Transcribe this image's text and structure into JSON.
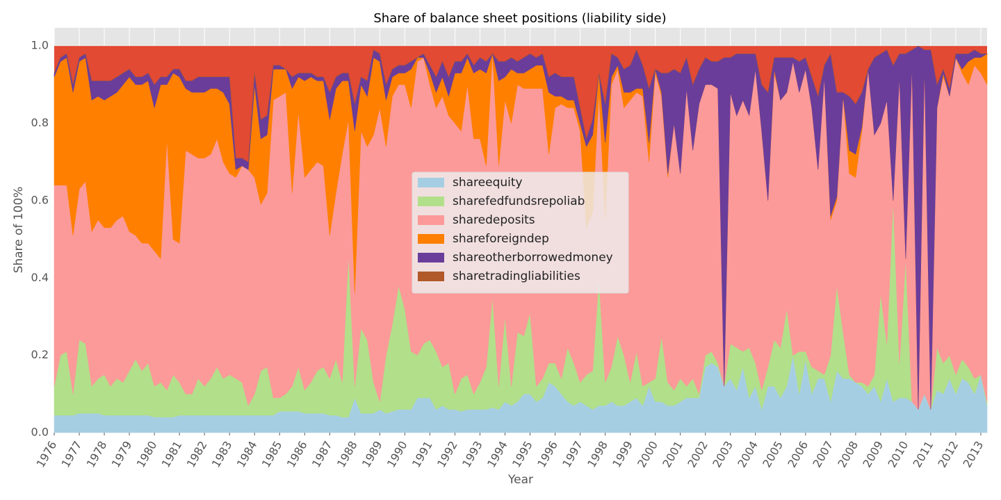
{
  "chart_data": {
    "type": "stackedarea",
    "title": "Share of balance sheet positions (liability side)",
    "xlabel": "Year",
    "ylabel": "Share of 100%",
    "x": [
      1976,
      1976.25,
      1976.5,
      1976.75,
      1977,
      1977.25,
      1977.5,
      1977.75,
      1978,
      1978.25,
      1978.5,
      1978.75,
      1979,
      1979.25,
      1979.5,
      1979.75,
      1980,
      1980.25,
      1980.5,
      1980.75,
      1981,
      1981.25,
      1981.5,
      1981.75,
      1982,
      1982.25,
      1982.5,
      1982.75,
      1983,
      1983.25,
      1983.5,
      1983.75,
      1984,
      1984.25,
      1984.5,
      1984.75,
      1985,
      1985.25,
      1985.5,
      1985.75,
      1986,
      1986.25,
      1986.5,
      1986.75,
      1987,
      1987.25,
      1987.5,
      1987.75,
      1988,
      1988.25,
      1988.5,
      1988.75,
      1989,
      1989.25,
      1989.5,
      1989.75,
      1990,
      1990.25,
      1990.5,
      1990.75,
      1991,
      1991.25,
      1991.5,
      1991.75,
      1992,
      1992.25,
      1992.5,
      1992.75,
      1993,
      1993.25,
      1993.5,
      1993.75,
      1994,
      1994.25,
      1994.5,
      1994.75,
      1995,
      1995.25,
      1995.5,
      1995.75,
      1996,
      1996.25,
      1996.5,
      1996.75,
      1997,
      1997.25,
      1997.5,
      1997.75,
      1998,
      1998.25,
      1998.5,
      1998.75,
      1999,
      1999.25,
      1999.5,
      1999.75,
      2000,
      2000.25,
      2000.5,
      2000.75,
      2001,
      2001.25,
      2001.5,
      2001.75,
      2002,
      2002.25,
      2002.5,
      2002.75,
      2003,
      2003.25,
      2003.5,
      2003.75,
      2004,
      2004.25,
      2004.5,
      2004.75,
      2005,
      2005.25,
      2005.5,
      2005.75,
      2006,
      2006.25,
      2006.5,
      2006.75,
      2007,
      2007.25,
      2007.5,
      2007.75,
      2008,
      2008.25,
      2008.5,
      2008.75,
      2009,
      2009.25,
      2009.5,
      2009.75,
      2010,
      2010.25,
      2010.5,
      2010.75,
      2011,
      2011.25,
      2011.5,
      2011.75,
      2012,
      2012.25,
      2012.5,
      2012.75,
      2013,
      2013.25
    ],
    "series": [
      {
        "name": "shareequity",
        "color": "#a6cee3",
        "values": [
          0.045,
          0.045,
          0.045,
          0.045,
          0.05,
          0.05,
          0.05,
          0.05,
          0.045,
          0.045,
          0.045,
          0.045,
          0.045,
          0.045,
          0.045,
          0.045,
          0.04,
          0.04,
          0.04,
          0.04,
          0.045,
          0.045,
          0.045,
          0.045,
          0.045,
          0.045,
          0.045,
          0.045,
          0.045,
          0.045,
          0.045,
          0.045,
          0.045,
          0.045,
          0.045,
          0.045,
          0.055,
          0.055,
          0.055,
          0.055,
          0.05,
          0.05,
          0.05,
          0.05,
          0.045,
          0.045,
          0.04,
          0.04,
          0.09,
          0.05,
          0.05,
          0.05,
          0.06,
          0.05,
          0.055,
          0.06,
          0.06,
          0.06,
          0.09,
          0.09,
          0.09,
          0.06,
          0.07,
          0.06,
          0.06,
          0.055,
          0.06,
          0.06,
          0.06,
          0.06,
          0.065,
          0.06,
          0.08,
          0.07,
          0.08,
          0.1,
          0.1,
          0.08,
          0.09,
          0.13,
          0.12,
          0.1,
          0.08,
          0.07,
          0.08,
          0.07,
          0.06,
          0.07,
          0.07,
          0.08,
          0.07,
          0.07,
          0.08,
          0.09,
          0.07,
          0.12,
          0.08,
          0.08,
          0.07,
          0.07,
          0.08,
          0.09,
          0.09,
          0.09,
          0.17,
          0.18,
          0.17,
          0.12,
          0.14,
          0.11,
          0.17,
          0.09,
          0.12,
          0.06,
          0.12,
          0.12,
          0.09,
          0.12,
          0.2,
          0.1,
          0.19,
          0.1,
          0.14,
          0.14,
          0.08,
          0.16,
          0.14,
          0.14,
          0.13,
          0.12,
          0.1,
          0.12,
          0.08,
          0.14,
          0.08,
          0.09,
          0.09,
          0.08,
          0.06,
          0.1,
          0.06,
          0.11,
          0.1,
          0.14,
          0.1,
          0.14,
          0.13,
          0.1,
          0.15,
          0.07
        ]
      },
      {
        "name": "sharefedfundsrepoliab",
        "color": "#b2df8a",
        "values": [
          0.075,
          0.155,
          0.165,
          0.055,
          0.19,
          0.18,
          0.07,
          0.09,
          0.105,
          0.075,
          0.095,
          0.085,
          0.115,
          0.145,
          0.115,
          0.135,
          0.08,
          0.09,
          0.07,
          0.11,
          0.085,
          0.055,
          0.055,
          0.095,
          0.075,
          0.095,
          0.125,
          0.095,
          0.105,
          0.095,
          0.085,
          0.025,
          0.055,
          0.115,
          0.125,
          0.045,
          0.035,
          0.045,
          0.065,
          0.115,
          0.06,
          0.08,
          0.11,
          0.12,
          0.095,
          0.145,
          0.09,
          0.42,
          0.03,
          0.22,
          0.19,
          0.08,
          0.02,
          0.15,
          0.225,
          0.32,
          0.26,
          0.15,
          0.11,
          0.14,
          0.15,
          0.15,
          0.1,
          0.12,
          0.04,
          0.085,
          0.09,
          0.04,
          0.07,
          0.11,
          0.285,
          0.06,
          0.22,
          0.05,
          0.18,
          0.15,
          0.21,
          0.04,
          0.05,
          0.05,
          0.06,
          0.04,
          0.14,
          0.11,
          0.05,
          0.08,
          0.1,
          0.33,
          0.06,
          0.09,
          0.18,
          0.13,
          0.05,
          0.12,
          0.05,
          0.01,
          0.06,
          0.17,
          0.06,
          0.04,
          0.06,
          0.03,
          0.05,
          0.01,
          0.03,
          0.03,
          0.01,
          0,
          0.09,
          0.11,
          0.04,
          0.13,
          0.06,
          0.05,
          0.05,
          0.12,
          0.13,
          0.2,
          0,
          0.11,
          0.02,
          0.07,
          0.02,
          0.01,
          0.12,
          0.22,
          0.12,
          0.01,
          0,
          0.01,
          0.02,
          0.03,
          0.28,
          0.09,
          0.52,
          0.09,
          0.36,
          0,
          0,
          0,
          0,
          0.11,
          0.08,
          0.06,
          0.05,
          0.05,
          0.04,
          0.04,
          0,
          0.01
        ]
      },
      {
        "name": "sharedeposits",
        "color": "#fb9a99",
        "values": [
          0.52,
          0.44,
          0.43,
          0.41,
          0.39,
          0.42,
          0.4,
          0.41,
          0.38,
          0.41,
          0.41,
          0.43,
          0.36,
          0.32,
          0.33,
          0.31,
          0.35,
          0.32,
          0.65,
          0.35,
          0.36,
          0.63,
          0.62,
          0.57,
          0.59,
          0.58,
          0.59,
          0.56,
          0.52,
          0.52,
          0.56,
          0.61,
          0.56,
          0.43,
          0.45,
          0.77,
          0.78,
          0.78,
          0.5,
          0.66,
          0.55,
          0.55,
          0.54,
          0.52,
          0.37,
          0.43,
          0.59,
          0.35,
          0.24,
          0.51,
          0.5,
          0.64,
          0.76,
          0.54,
          0.59,
          0.52,
          0.58,
          0.63,
          0.76,
          0.74,
          0.66,
          0.63,
          0.7,
          0.64,
          0.7,
          0.64,
          0.75,
          0.66,
          0.63,
          0.52,
          0.63,
          0.57,
          0.56,
          0.68,
          0.64,
          0.64,
          0.58,
          0.77,
          0.75,
          0.54,
          0.66,
          0.71,
          0.62,
          0.66,
          0.65,
          0.38,
          0.41,
          0.48,
          0.42,
          0.73,
          0.69,
          0.64,
          0.73,
          0.67,
          0.75,
          0.57,
          0.79,
          0.62,
          0.53,
          0.69,
          0.53,
          0.77,
          0.59,
          0.75,
          0.7,
          0.69,
          0.71,
          0,
          0.65,
          0.6,
          0.65,
          0.6,
          0.76,
          0.67,
          0.43,
          0.69,
          0.64,
          0.56,
          0.76,
          0.67,
          0.73,
          0.67,
          0.52,
          0.77,
          0.35,
          0.22,
          0.61,
          0.52,
          0.53,
          0.65,
          0.82,
          0.62,
          0.44,
          0.63,
          0,
          0.74,
          0,
          0.87,
          0,
          0.85,
          0,
          0.62,
          0.74,
          0.67,
          0.82,
          0.74,
          0.73,
          0.81,
          0.78,
          0.82
        ]
      },
      {
        "name": "shareforeigndep",
        "color": "#ff7f00",
        "values": [
          0.28,
          0.32,
          0.33,
          0.37,
          0.33,
          0.32,
          0.34,
          0.32,
          0.33,
          0.34,
          0.33,
          0.34,
          0.4,
          0.39,
          0.41,
          0.42,
          0.37,
          0.45,
          0.14,
          0.43,
          0.43,
          0.16,
          0.16,
          0.17,
          0.17,
          0.17,
          0.13,
          0.18,
          0.18,
          0.02,
          0,
          0,
          0.24,
          0.17,
          0.15,
          0.08,
          0.07,
          0.06,
          0.27,
          0.09,
          0.25,
          0.24,
          0.21,
          0.22,
          0.3,
          0.27,
          0.19,
          0.1,
          0.42,
          0.12,
          0.13,
          0.2,
          0.12,
          0.12,
          0.05,
          0.03,
          0.03,
          0.1,
          0.01,
          0,
          0.03,
          0.04,
          0.05,
          0.05,
          0.13,
          0.15,
          0.07,
          0.17,
          0.18,
          0.24,
          0,
          0.22,
          0.06,
          0.14,
          0.03,
          0.04,
          0.05,
          0.06,
          0.06,
          0.16,
          0.03,
          0.02,
          0.02,
          0.02,
          0.02,
          0.21,
          0.2,
          0.05,
          0.2,
          0.02,
          0.01,
          0.04,
          0.02,
          0.01,
          0.02,
          0.05,
          0.01,
          0.01,
          0.01,
          0,
          0,
          0,
          0,
          0,
          0,
          0,
          0,
          0,
          0,
          0,
          0,
          0,
          0,
          0,
          0,
          0.01,
          0,
          0,
          0,
          0,
          0,
          0,
          0,
          0,
          0.01,
          0.01,
          0,
          0.06,
          0.06,
          0.01,
          0,
          0,
          0,
          0,
          0,
          0,
          0,
          0,
          0,
          0,
          0,
          0,
          0.01,
          0,
          0,
          0.01,
          0.06,
          0.02,
          0.04,
          0.08
        ]
      },
      {
        "name": "shareotherborrowedmoney",
        "color": "#6a3d9a",
        "values": [
          0.01,
          0.01,
          0.01,
          0.02,
          0.01,
          0.01,
          0.05,
          0.04,
          0.05,
          0.04,
          0.04,
          0.03,
          0.02,
          0.02,
          0.02,
          0.02,
          0.06,
          0.02,
          0.02,
          0.01,
          0.02,
          0.02,
          0.03,
          0.04,
          0.04,
          0.03,
          0.03,
          0.04,
          0.07,
          0.03,
          0.02,
          0.02,
          0.03,
          0.05,
          0.05,
          0.01,
          0.01,
          0,
          0.03,
          0.01,
          0.02,
          0.01,
          0.01,
          0.01,
          0.07,
          0.03,
          0.02,
          0.02,
          0.07,
          0.02,
          0.04,
          0.02,
          0.02,
          0.04,
          0.02,
          0.02,
          0.02,
          0.02,
          0,
          0.01,
          0.02,
          0.04,
          0.04,
          0.05,
          0.03,
          0.03,
          0.01,
          0.02,
          0.03,
          0.03,
          0,
          0.05,
          0.04,
          0.03,
          0.03,
          0.04,
          0.04,
          0.02,
          0.03,
          0.04,
          0.06,
          0.05,
          0.06,
          0.06,
          0.04,
          0.02,
          0.04,
          0,
          0.1,
          0.06,
          0.02,
          0.06,
          0.07,
          0.1,
          0.06,
          0.14,
          0,
          0.05,
          0.26,
          0.14,
          0.26,
          0.08,
          0.17,
          0.09,
          0.07,
          0.06,
          0.07,
          0.85,
          0.09,
          0.16,
          0.12,
          0.16,
          0.04,
          0.12,
          0.28,
          0.03,
          0.11,
          0.09,
          0.01,
          0.08,
          0.03,
          0.08,
          0.19,
          0.03,
          0.42,
          0.27,
          0.01,
          0.14,
          0.13,
          0.09,
          0,
          0.2,
          0.18,
          0.13,
          0.35,
          0.06,
          0.53,
          0.04,
          0.94,
          0.04,
          0.93,
          0.06,
          0.01,
          0.02,
          0.01,
          0.04,
          0.02,
          0.02,
          0.01,
          0
        ]
      },
      {
        "name": "sharetradingliabilities",
        "color": "#b15928",
        "values": [
          0,
          0,
          0,
          0,
          0,
          0,
          0,
          0,
          0,
          0,
          0,
          0,
          0,
          0,
          0,
          0,
          0,
          0,
          0,
          0,
          0,
          0,
          0,
          0,
          0,
          0,
          0,
          0,
          0,
          0,
          0,
          0,
          0,
          0,
          0,
          0,
          0,
          0,
          0,
          0,
          0,
          0,
          0,
          0,
          0,
          0,
          0,
          0,
          0,
          0,
          0,
          0,
          0,
          0,
          0,
          0,
          0,
          0,
          0,
          0,
          0,
          0,
          0,
          0,
          0,
          0,
          0,
          0,
          0,
          0,
          0,
          0,
          0,
          0,
          0,
          0,
          0,
          0,
          0,
          0,
          0,
          0,
          0,
          0,
          0,
          0,
          0,
          0,
          0,
          0,
          0,
          0,
          0,
          0,
          0,
          0,
          0,
          0,
          0,
          0,
          0,
          0,
          0,
          0,
          0,
          0,
          0,
          0,
          0,
          0,
          0,
          0,
          0,
          0,
          0,
          0,
          0,
          0,
          0,
          0,
          0,
          0,
          0,
          0,
          0,
          0,
          0,
          0,
          0,
          0,
          0,
          0,
          0,
          0,
          0,
          0,
          0,
          0,
          0,
          0,
          0,
          0,
          0,
          0,
          0,
          0,
          0,
          0,
          0,
          0
        ]
      }
    ],
    "xlim": [
      1976,
      2013.25
    ],
    "xticks": [
      1976,
      1977,
      1978,
      1979,
      1980,
      1981,
      1982,
      1983,
      1984,
      1985,
      1986,
      1987,
      1988,
      1989,
      1990,
      1991,
      1992,
      1993,
      1994,
      1995,
      1996,
      1997,
      1998,
      1999,
      2000,
      2001,
      2002,
      2003,
      2004,
      2005,
      2006,
      2007,
      2008,
      2009,
      2010,
      2011,
      2012,
      2013
    ],
    "ylim": [
      0,
      1.047
    ],
    "yticks": [
      {
        "value": 0,
        "label": "0.0"
      },
      0.2,
      0.4,
      0.6,
      0.8,
      {
        "value": 1,
        "label": "1.0"
      }
    ],
    "grid": true,
    "legend": "center"
  }
}
